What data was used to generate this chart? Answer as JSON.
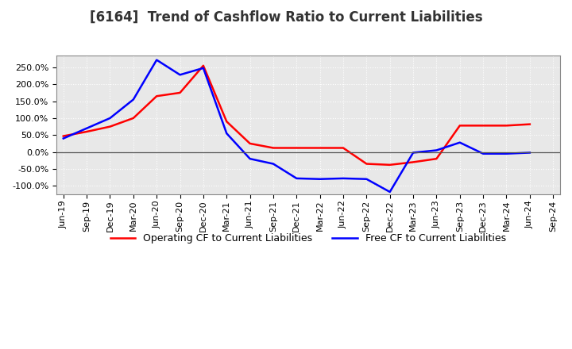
{
  "title": "[6164]  Trend of Cashflow Ratio to Current Liabilities",
  "x_labels": [
    "Jun-19",
    "Sep-19",
    "Dec-19",
    "Mar-20",
    "Jun-20",
    "Sep-20",
    "Dec-20",
    "Mar-21",
    "Jun-21",
    "Sep-21",
    "Dec-21",
    "Mar-22",
    "Jun-22",
    "Sep-22",
    "Dec-22",
    "Mar-23",
    "Jun-23",
    "Sep-23",
    "Dec-23",
    "Mar-24",
    "Jun-24",
    "Sep-24"
  ],
  "operating_cf": [
    47,
    60,
    75,
    100,
    165,
    175,
    255,
    90,
    25,
    12,
    12,
    12,
    12,
    -35,
    -38,
    -30,
    -20,
    78,
    78,
    78,
    82,
    null
  ],
  "free_cf": [
    40,
    70,
    100,
    155,
    272,
    228,
    248,
    55,
    -20,
    -35,
    -78,
    -80,
    -78,
    -80,
    -118,
    -2,
    5,
    28,
    -5,
    -5,
    -2,
    null
  ],
  "operating_color": "#ff0000",
  "free_color": "#0000ff",
  "ylim": [
    -125,
    285
  ],
  "yticks": [
    -100,
    -50,
    0,
    50,
    100,
    150,
    200,
    250
  ],
  "plot_bg_color": "#e8e8e8",
  "fig_bg_color": "#ffffff",
  "grid_color": "#ffffff",
  "title_fontsize": 12,
  "tick_fontsize": 8,
  "legend_fontsize": 9
}
